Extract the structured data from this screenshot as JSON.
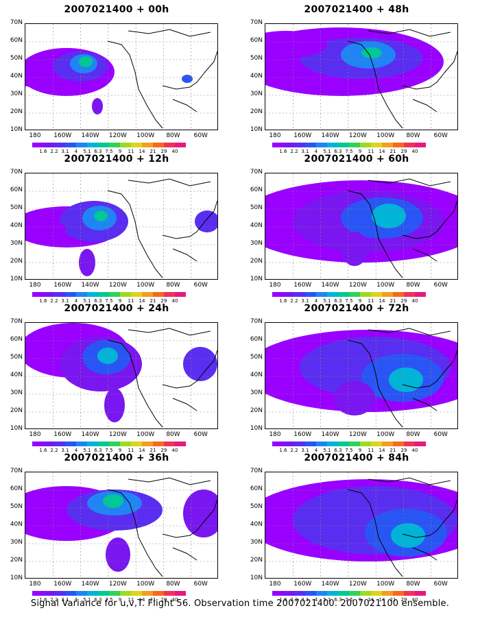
{
  "panels": [
    {
      "title": "2007021400 + 00h"
    },
    {
      "title": "2007021400 + 12h"
    },
    {
      "title": "2007021400 + 24h"
    },
    {
      "title": "2007021400 + 36h"
    },
    {
      "title": "2007021400 + 48h"
    },
    {
      "title": "2007021400 + 60h"
    },
    {
      "title": "2007021400 + 72h"
    },
    {
      "title": "2007021400 + 84h"
    }
  ],
  "axes": {
    "lat_labels": [
      "70N",
      "60N",
      "50N",
      "40N",
      "30N",
      "20N",
      "10N"
    ],
    "lon_labels": [
      "180",
      "160W",
      "140W",
      "120W",
      "100W",
      "80W",
      "60W"
    ]
  },
  "colorbar": {
    "labels": [
      "1.6",
      "2.2",
      "3.1",
      "4",
      "5.1",
      "6.3",
      "7.5",
      "9",
      "11",
      "14",
      "21",
      "29",
      "40"
    ],
    "colors": [
      "#9900ff",
      "#7a16f0",
      "#5a2ef0",
      "#2a55f5",
      "#1f85f5",
      "#00b4d8",
      "#00c896",
      "#2fd25a",
      "#9bdc1e",
      "#e0d21e",
      "#f0a01e",
      "#f56a1e",
      "#f0325a",
      "#e6197d"
    ]
  },
  "footer": "Signal Variance for u,v,T. Flight 56. Observation time 2007021400. 2007021100 ensemble."
}
